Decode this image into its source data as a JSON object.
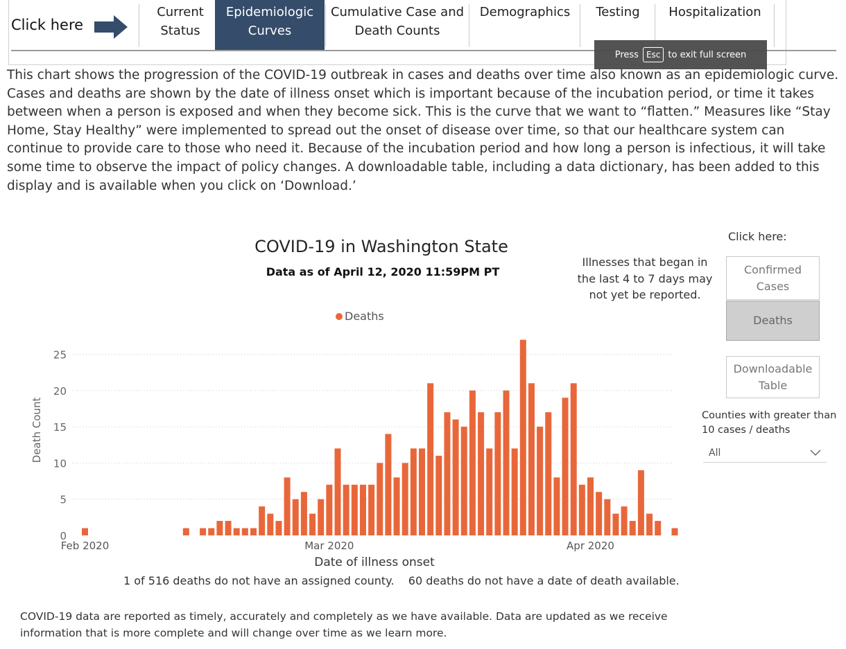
{
  "nav": {
    "cta_label": "Click here",
    "tabs": [
      {
        "label": "Current\nStatus",
        "active": false
      },
      {
        "label": "Epidemiologic\nCurves",
        "active": true
      },
      {
        "label": "Cumulative Case and\nDeath Counts",
        "active": false
      },
      {
        "label": "Demographics",
        "active": false
      },
      {
        "label": "Testing",
        "active": false
      },
      {
        "label": "Hospitalization",
        "active": false
      }
    ],
    "active_color": "#354c6a"
  },
  "fullscreen_toast": {
    "press": "Press",
    "key": "Esc",
    "rest": "to exit full screen"
  },
  "intro_text": "This chart shows the progression of the COVID-19 outbreak in cases and deaths over time also known as an epidemiologic curve. Cases and deaths are shown by the date of illness onset which is important because of the incubation period, or time it takes between when a person is exposed and when they become sick. This is the curve that we want to “flatten.” Measures like “Stay Home, Stay Healthy” were implemented to spread out the onset of disease over time, so that our healthcare system can continue to provide care to those who need it. Because of the incubation period and how long a person is infectious, it will take some time to observe the impact of policy changes. A downloadable table, including a data dictionary, has been added to this display and is available when you click on ‘Download.’",
  "chart": {
    "title": "COVID-19 in Washington State",
    "subtitle": "Data as of April 12, 2020 11:59PM PT",
    "note": "Illnesses that began in the last 4 to 7 days may not yet be reported.",
    "footnote_left": "1 of 516 deaths do not have an assigned county.",
    "footnote_right": "60 deaths do not have a date of death available.",
    "disclaimer": "COVID-19 data are reported as timely, accurately and completely as we have available. Data are updated as we receive information that is more complete and will change over time as we learn more."
  },
  "panel": {
    "label": "Click here:",
    "buttons": [
      {
        "label": "Confirmed\nCases",
        "active": false
      },
      {
        "label": "Deaths",
        "active": true
      },
      {
        "label": "Downloadable\nTable",
        "active": false
      }
    ],
    "filter_label": "Counties with greater than 10 cases / deaths",
    "filter_value": "All"
  },
  "chart_data": {
    "type": "bar",
    "title": "COVID-19 in Washington State",
    "subtitle": "Data as of April 12, 2020 11:59PM PT",
    "xlabel": "Date of illness onset",
    "ylabel": "Death Count",
    "ylim": [
      0,
      27
    ],
    "yticks": [
      0,
      5,
      10,
      15,
      20,
      25
    ],
    "xticks": [
      {
        "label": "Feb 2020",
        "date": "2020-02-01"
      },
      {
        "label": "Mar 2020",
        "date": "2020-03-01"
      },
      {
        "label": "Apr 2020",
        "date": "2020-04-01"
      }
    ],
    "grid": "horizontal dotted",
    "legend": "top-center",
    "series": [
      {
        "name": "Deaths",
        "color": "#e8673a",
        "points": [
          {
            "date": "2020-02-01",
            "value": 1
          },
          {
            "date": "2020-02-13",
            "value": 1
          },
          {
            "date": "2020-02-15",
            "value": 1
          },
          {
            "date": "2020-02-16",
            "value": 1
          },
          {
            "date": "2020-02-17",
            "value": 2
          },
          {
            "date": "2020-02-18",
            "value": 2
          },
          {
            "date": "2020-02-19",
            "value": 1
          },
          {
            "date": "2020-02-20",
            "value": 1
          },
          {
            "date": "2020-02-21",
            "value": 1
          },
          {
            "date": "2020-02-22",
            "value": 4
          },
          {
            "date": "2020-02-23",
            "value": 3
          },
          {
            "date": "2020-02-24",
            "value": 2
          },
          {
            "date": "2020-02-25",
            "value": 8
          },
          {
            "date": "2020-02-26",
            "value": 5
          },
          {
            "date": "2020-02-27",
            "value": 6
          },
          {
            "date": "2020-02-28",
            "value": 3
          },
          {
            "date": "2020-02-29",
            "value": 5
          },
          {
            "date": "2020-03-01",
            "value": 7
          },
          {
            "date": "2020-03-02",
            "value": 12
          },
          {
            "date": "2020-03-03",
            "value": 7
          },
          {
            "date": "2020-03-04",
            "value": 7
          },
          {
            "date": "2020-03-05",
            "value": 7
          },
          {
            "date": "2020-03-06",
            "value": 7
          },
          {
            "date": "2020-03-07",
            "value": 10
          },
          {
            "date": "2020-03-08",
            "value": 14
          },
          {
            "date": "2020-03-09",
            "value": 8
          },
          {
            "date": "2020-03-10",
            "value": 10
          },
          {
            "date": "2020-03-11",
            "value": 12
          },
          {
            "date": "2020-03-12",
            "value": 12
          },
          {
            "date": "2020-03-13",
            "value": 21
          },
          {
            "date": "2020-03-14",
            "value": 11
          },
          {
            "date": "2020-03-15",
            "value": 17
          },
          {
            "date": "2020-03-16",
            "value": 16
          },
          {
            "date": "2020-03-17",
            "value": 15
          },
          {
            "date": "2020-03-18",
            "value": 20
          },
          {
            "date": "2020-03-19",
            "value": 17
          },
          {
            "date": "2020-03-20",
            "value": 12
          },
          {
            "date": "2020-03-21",
            "value": 17
          },
          {
            "date": "2020-03-22",
            "value": 20
          },
          {
            "date": "2020-03-23",
            "value": 12
          },
          {
            "date": "2020-03-24",
            "value": 27
          },
          {
            "date": "2020-03-25",
            "value": 21
          },
          {
            "date": "2020-03-26",
            "value": 15
          },
          {
            "date": "2020-03-27",
            "value": 17
          },
          {
            "date": "2020-03-28",
            "value": 8
          },
          {
            "date": "2020-03-29",
            "value": 19
          },
          {
            "date": "2020-03-30",
            "value": 21
          },
          {
            "date": "2020-03-31",
            "value": 7
          },
          {
            "date": "2020-04-01",
            "value": 8
          },
          {
            "date": "2020-04-02",
            "value": 6
          },
          {
            "date": "2020-04-03",
            "value": 5
          },
          {
            "date": "2020-04-04",
            "value": 3
          },
          {
            "date": "2020-04-05",
            "value": 4
          },
          {
            "date": "2020-04-06",
            "value": 2
          },
          {
            "date": "2020-04-07",
            "value": 9
          },
          {
            "date": "2020-04-08",
            "value": 3
          },
          {
            "date": "2020-04-09",
            "value": 2
          },
          {
            "date": "2020-04-11",
            "value": 1
          }
        ]
      }
    ]
  }
}
